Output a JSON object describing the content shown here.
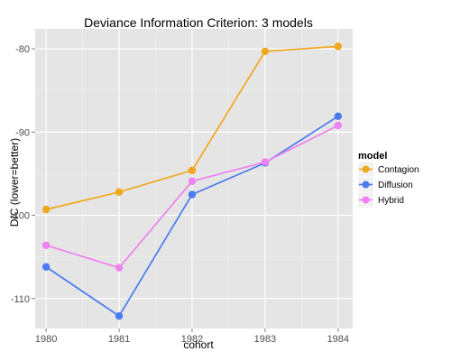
{
  "chart_data": {
    "type": "line",
    "title": "Deviance Information Criterion: 3 models",
    "xlabel": "cohort",
    "ylabel": "DIC (lower=better)",
    "x": [
      1980,
      1981,
      1982,
      1983,
      1984
    ],
    "x_ticks": [
      "1980",
      "1981",
      "1982",
      "1983",
      "1984"
    ],
    "y_ticks": [
      -80,
      -90,
      -100,
      -110
    ],
    "y_tick_labels": [
      "-80",
      "-90",
      "-100",
      "-110"
    ],
    "ylim": [
      -113.6,
      -77.6
    ],
    "grid": true,
    "legend_title": "model",
    "legend_position": "right",
    "series": [
      {
        "name": "Contagion",
        "color": "#F0A81F",
        "values": [
          -99.3,
          -97.2,
          -94.6,
          -80.3,
          -79.7
        ]
      },
      {
        "name": "Diffusion",
        "color": "#4A7BF0",
        "values": [
          -106.2,
          -112.1,
          -97.5,
          -93.7,
          -88.1
        ]
      },
      {
        "name": "Hybrid",
        "color": "#EE82EE",
        "values": [
          -103.6,
          -106.3,
          -95.9,
          -93.6,
          -89.2
        ]
      }
    ]
  }
}
